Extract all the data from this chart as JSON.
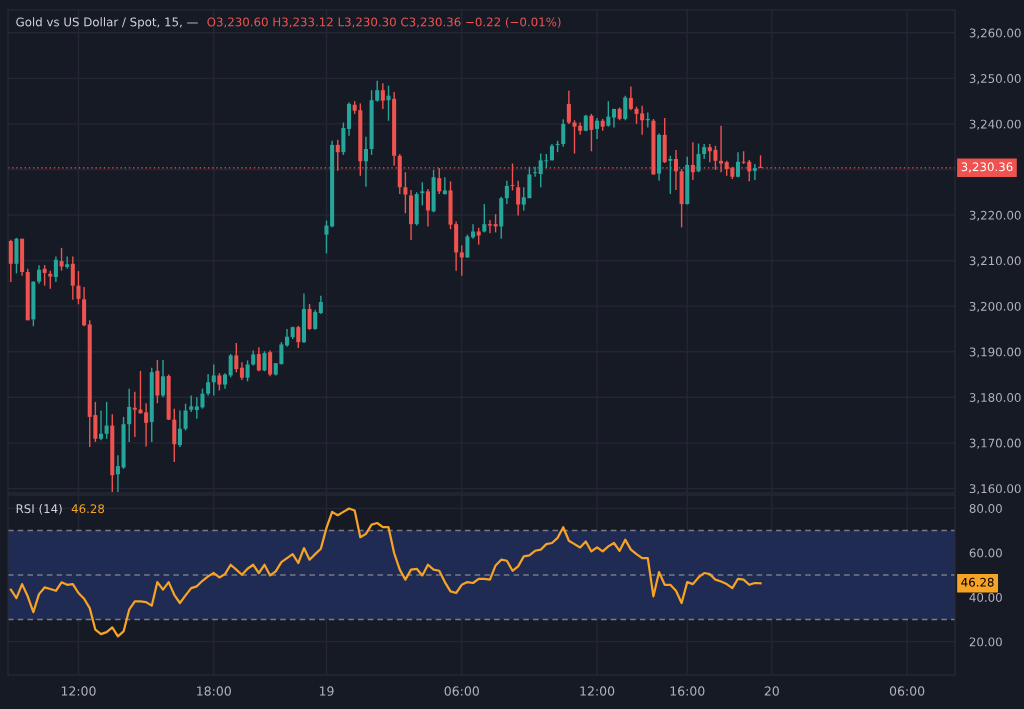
{
  "chart_data": [
    {
      "type": "candlestick",
      "title": "Gold vs US Dollar / Spot, 15, —",
      "subtitle": "O3,230.60 H3,233.12 L3,230.30 C3,230.36 −0.22 (−0.01%)",
      "colors": [
        "#ef5350",
        "#26a69a",
        "#ef5350",
        "#ef5350",
        "#26a69a",
        "#26a69a",
        "#ef5350",
        "#ef5350",
        "#26a69a",
        "#ef5350",
        "#26a69a",
        "#ef5350",
        "#ef5350",
        "#ef5350",
        "#ef5350",
        "#ef5350",
        "#26a69a",
        "#26a69a",
        "#ef5350",
        "#26a69a",
        "#26a69a",
        "#26a69a",
        "#ef5350",
        "#ef5350",
        "#ef5350",
        "#26a69a",
        "#ef5350",
        "#26a69a",
        "#ef5350",
        "#ef5350",
        "#26a69a",
        "#26a69a",
        "#26a69a",
        "#26a69a",
        "#26a69a",
        "#26a69a",
        "#26a69a",
        "#ef5350",
        "#26a69a",
        "#26a69a",
        "#ef5350",
        "#ef5350",
        "#26a69a",
        "#26a69a",
        "#ef5350",
        "#26a69a",
        "#ef5350",
        "#26a69a",
        "#26a69a",
        "#26a69a",
        "#26a69a",
        "#ef5350",
        "#26a69a",
        "#ef5350",
        "#26a69a",
        "#26a69a",
        "#26a69a",
        "#26a69a",
        "#ef5350",
        "#26a69a",
        "#26a69a",
        "#ef5350",
        "#ef5350",
        "#26a69a",
        "#26a69a",
        "#26a69a",
        "#ef5350",
        "#26a69a",
        "#ef5350",
        "#ef5350",
        "#ef5350",
        "#ef5350",
        "#26a69a",
        "#26a69a",
        "#ef5350",
        "#26a69a",
        "#ef5350",
        "#26a69a",
        "#ef5350",
        "#ef5350",
        "#ef5350",
        "#26a69a",
        "#26a69a",
        "#ef5350",
        "#26a69a",
        "#ef5350",
        "#ef5350",
        "#26a69a",
        "#26a69a",
        "#ef5350",
        "#ef5350",
        "#26a69a",
        "#26a69a",
        "#26a69a",
        "#26a69a",
        "#26a69a",
        "#26a69a",
        "#26a69a",
        "#26a69a",
        "#ef5350",
        "#ef5350",
        "#ef5350",
        "#26a69a",
        "#ef5350",
        "#26a69a",
        "#ef5350",
        "#26a69a",
        "#26a69a",
        "#ef5350",
        "#26a69a",
        "#ef5350",
        "#ef5350",
        "#ef5350",
        "#26a69a",
        "#ef5350",
        "#26a69a",
        "#ef5350",
        "#26a69a",
        "#ef5350",
        "#ef5350",
        "#26a69a",
        "#ef5350",
        "#26a69a",
        "#26a69a",
        "#ef5350",
        "#ef5350",
        "#ef5350",
        "#ef5350",
        "#ef5350",
        "#26a69a",
        "#ef5350",
        "#ef5350",
        "#26a69a",
        "#ef5350",
        null,
        null,
        null,
        null,
        null,
        null,
        null,
        null,
        null,
        null,
        null,
        null,
        null,
        null,
        null,
        null,
        null,
        null,
        null,
        null,
        null,
        null,
        null,
        null,
        null,
        null,
        null,
        null,
        null,
        null,
        null,
        null,
        null,
        null
      ],
      "categories": [
        null,
        null,
        null,
        null,
        null,
        null,
        null,
        null,
        null,
        null,
        null,
        null,
        null,
        null,
        null,
        null,
        null,
        null,
        null,
        null,
        null,
        null,
        null,
        null,
        null,
        null,
        null,
        null,
        null,
        null,
        null,
        null,
        null,
        null,
        null,
        null,
        null,
        null,
        null,
        null,
        null,
        null,
        null,
        null,
        null,
        null,
        null,
        null,
        null,
        null,
        null,
        null,
        null,
        null,
        null,
        null,
        null,
        null,
        null,
        null,
        null,
        null,
        null,
        null,
        null,
        null,
        null,
        null,
        null,
        null,
        null,
        null,
        null,
        null,
        null,
        null,
        null,
        null,
        null,
        null,
        null,
        null,
        null,
        null,
        null,
        null,
        null,
        null,
        null,
        null,
        null,
        null,
        null,
        null,
        null,
        null,
        null,
        null,
        null,
        null,
        null,
        null,
        null,
        null,
        null,
        null,
        null,
        null,
        null,
        null,
        null,
        null,
        null,
        null,
        null,
        null,
        null,
        null,
        null,
        null,
        null,
        null,
        null,
        null,
        null,
        null,
        null,
        null,
        null,
        null,
        null,
        null,
        null,
        null,
        null,
        null,
        null,
        null,
        null,
        null,
        null,
        null,
        null,
        null,
        null,
        null,
        null,
        null,
        null,
        null,
        null,
        null,
        null,
        null,
        null,
        null,
        null,
        null,
        null,
        null,
        null,
        null,
        null,
        null,
        null,
        null,
        null,
        null
      ],
      "ohlc": [
        [
          3214.3,
          3214.6,
          3205.3,
          3209.3
        ],
        [
          3209.3,
          3215.0,
          3207.2,
          3214.8
        ],
        [
          3214.8,
          3214.8,
          3206.7,
          3207.5
        ],
        [
          3207.5,
          3208.2,
          3196.9,
          3196.9
        ],
        [
          3197.1,
          3205.4,
          3195.6,
          3205.4
        ],
        [
          3205.4,
          3209.0,
          3204.9,
          3208.0
        ],
        [
          3208.2,
          3209.0,
          3204.5,
          3207.3
        ],
        [
          3207.1,
          3207.8,
          3203.8,
          3206.5
        ],
        [
          3206.4,
          3210.9,
          3205.3,
          3210.2
        ],
        [
          3209.9,
          3212.8,
          3207.8,
          3208.7
        ],
        [
          3208.6,
          3210.9,
          3208.2,
          3209.2
        ],
        [
          3209.3,
          3210.9,
          3201.4,
          3204.5
        ],
        [
          3204.5,
          3207.7,
          3200.4,
          3201.6
        ],
        [
          3201.5,
          3204.2,
          3195.6,
          3195.8
        ],
        [
          3196.0,
          3196.9,
          3169.1,
          3175.7
        ],
        [
          3176.1,
          3179.0,
          3170.2,
          3170.9
        ],
        [
          3170.9,
          3177.1,
          3170.6,
          3172.0
        ],
        [
          3172.0,
          3179.0,
          3170.9,
          3173.8
        ],
        [
          3173.8,
          3176.3,
          3159.2,
          3162.9
        ],
        [
          3163.1,
          3167.3,
          3159.2,
          3164.9
        ],
        [
          3164.6,
          3175.7,
          3164.3,
          3174.1
        ],
        [
          3174.1,
          3181.9,
          3170.2,
          3177.9
        ],
        [
          3177.7,
          3181.2,
          3171.3,
          3177.3
        ],
        [
          3177.3,
          3185.8,
          3176.4,
          3176.5
        ],
        [
          3176.7,
          3178.7,
          3169.2,
          3174.4
        ],
        [
          3174.6,
          3186.5,
          3170.2,
          3185.5
        ],
        [
          3185.8,
          3188.2,
          3178.7,
          3180.4
        ],
        [
          3180.4,
          3188.2,
          3180.0,
          3184.6
        ],
        [
          3184.7,
          3185.0,
          3175.0,
          3175.1
        ],
        [
          3175.1,
          3177.5,
          3165.8,
          3169.7
        ],
        [
          3169.5,
          3177.1,
          3169.1,
          3173.1
        ],
        [
          3173.1,
          3178.6,
          3172.7,
          3177.1
        ],
        [
          3177.3,
          3180.4,
          3176.8,
          3178.0
        ],
        [
          3177.2,
          3180.0,
          3175.3,
          3178.0
        ],
        [
          3177.8,
          3181.9,
          3177.5,
          3180.8
        ],
        [
          3180.8,
          3185.1,
          3180.4,
          3183.3
        ],
        [
          3183.3,
          3187.2,
          3180.4,
          3184.8
        ],
        [
          3184.8,
          3185.3,
          3181.5,
          3182.8
        ],
        [
          3182.8,
          3185.3,
          3181.9,
          3185.0
        ],
        [
          3184.8,
          3189.5,
          3184.4,
          3189.2
        ],
        [
          3189.2,
          3191.9,
          3185.5,
          3186.2
        ],
        [
          3186.5,
          3187.7,
          3183.8,
          3184.3
        ],
        [
          3184.3,
          3188.1,
          3183.5,
          3187.2
        ],
        [
          3187.2,
          3190.3,
          3187.0,
          3189.4
        ],
        [
          3189.5,
          3191.0,
          3185.7,
          3185.9
        ],
        [
          3185.9,
          3190.1,
          3185.7,
          3189.7
        ],
        [
          3189.9,
          3190.3,
          3184.6,
          3185.0
        ],
        [
          3185.0,
          3187.5,
          3184.8,
          3187.5
        ],
        [
          3187.3,
          3192.1,
          3187.2,
          3191.6
        ],
        [
          3191.4,
          3195.0,
          3191.1,
          3193.3
        ],
        [
          3193.2,
          3195.5,
          3192.8,
          3195.4
        ],
        [
          3195.4,
          3195.7,
          3190.8,
          3192.1
        ],
        [
          3192.1,
          3202.8,
          3191.9,
          3199.4
        ],
        [
          3199.4,
          3200.5,
          3194.8,
          3195.0
        ],
        [
          3195.0,
          3199.2,
          3194.8,
          3198.7
        ],
        [
          3198.5,
          3202.3,
          3198.3,
          3200.9
        ],
        [
          3215.7,
          3218.8,
          3211.6,
          3217.7
        ],
        [
          3217.5,
          3236.3,
          3217.3,
          3235.4
        ],
        [
          3235.4,
          3236.5,
          3229.7,
          3233.8
        ],
        [
          3233.8,
          3240.3,
          3233.2,
          3239.1
        ],
        [
          3238.9,
          3244.7,
          3237.4,
          3244.4
        ],
        [
          3244.2,
          3245.0,
          3242.2,
          3242.9
        ],
        [
          3243.0,
          3244.5,
          3228.6,
          3231.8
        ],
        [
          3231.8,
          3237.2,
          3226.2,
          3234.5
        ],
        [
          3234.5,
          3247.4,
          3233.2,
          3245.2
        ],
        [
          3245.1,
          3249.5,
          3244.9,
          3247.4
        ],
        [
          3247.4,
          3248.9,
          3243.3,
          3245.1
        ],
        [
          3245.2,
          3248.4,
          3240.7,
          3246.2
        ],
        [
          3245.5,
          3247.0,
          3230.8,
          3233.0
        ],
        [
          3233.0,
          3233.4,
          3224.6,
          3226.1
        ],
        [
          3226.1,
          3229.4,
          3220.4,
          3224.5
        ],
        [
          3224.3,
          3225.5,
          3214.5,
          3218.0
        ],
        [
          3218.0,
          3225.0,
          3217.7,
          3224.6
        ],
        [
          3224.8,
          3227.2,
          3222.1,
          3225.2
        ],
        [
          3225.2,
          3225.7,
          3217.5,
          3221.0
        ],
        [
          3220.8,
          3229.9,
          3220.6,
          3228.3
        ],
        [
          3228.1,
          3230.3,
          3224.6,
          3225.2
        ],
        [
          3224.6,
          3228.3,
          3224.5,
          3225.4
        ],
        [
          3225.4,
          3227.4,
          3216.9,
          3217.9
        ],
        [
          3218.0,
          3218.6,
          3207.8,
          3211.8
        ],
        [
          3211.8,
          3213.3,
          3206.7,
          3210.7
        ],
        [
          3210.7,
          3215.7,
          3210.6,
          3215.3
        ],
        [
          3215.1,
          3218.0,
          3214.8,
          3216.4
        ],
        [
          3216.4,
          3217.2,
          3213.5,
          3215.5
        ],
        [
          3216.4,
          3222.4,
          3216.2,
          3218.0
        ],
        [
          3218.0,
          3218.9,
          3216.0,
          3217.7
        ],
        [
          3218.0,
          3220.2,
          3216.2,
          3217.5
        ],
        [
          3217.5,
          3224.0,
          3214.8,
          3223.7
        ],
        [
          3223.7,
          3227.5,
          3222.4,
          3226.4
        ],
        [
          3226.6,
          3231.3,
          3225.4,
          3226.4
        ],
        [
          3226.1,
          3227.5,
          3219.9,
          3222.3
        ],
        [
          3222.3,
          3226.1,
          3221.0,
          3223.9
        ],
        [
          3223.7,
          3230.6,
          3223.7,
          3228.9
        ],
        [
          3229.2,
          3230.6,
          3228.4,
          3229.4
        ],
        [
          3229.0,
          3233.5,
          3226.1,
          3232.0
        ],
        [
          3231.8,
          3233.4,
          3230.3,
          3232.0
        ],
        [
          3232.0,
          3235.6,
          3232.0,
          3235.2
        ],
        [
          3235.4,
          3236.3,
          3233.8,
          3235.6
        ],
        [
          3235.6,
          3241.0,
          3235.0,
          3240.0
        ],
        [
          3244.4,
          3247.3,
          3240.0,
          3240.3
        ],
        [
          3240.3,
          3240.8,
          3233.5,
          3239.4
        ],
        [
          3239.6,
          3240.3,
          3237.6,
          3238.5
        ],
        [
          3238.5,
          3242.0,
          3238.4,
          3241.8
        ],
        [
          3241.8,
          3242.2,
          3234.0,
          3238.7
        ],
        [
          3238.9,
          3241.3,
          3236.7,
          3240.7
        ],
        [
          3240.7,
          3241.1,
          3238.5,
          3239.4
        ],
        [
          3239.6,
          3245.0,
          3239.4,
          3241.6
        ],
        [
          3241.4,
          3243.3,
          3239.2,
          3243.3
        ],
        [
          3243.3,
          3243.6,
          3240.8,
          3241.1
        ],
        [
          3241.1,
          3246.2,
          3240.8,
          3245.8
        ],
        [
          3245.7,
          3248.2,
          3243.0,
          3243.3
        ],
        [
          3243.3,
          3243.8,
          3240.0,
          3242.2
        ],
        [
          3242.3,
          3244.0,
          3237.6,
          3240.8
        ],
        [
          3240.8,
          3242.5,
          3239.2,
          3241.1
        ],
        [
          3240.7,
          3241.1,
          3228.9,
          3228.9
        ],
        [
          3229.1,
          3237.9,
          3227.5,
          3237.6
        ],
        [
          3237.6,
          3241.3,
          3231.4,
          3231.6
        ],
        [
          3231.9,
          3233.0,
          3224.6,
          3232.3
        ],
        [
          3232.3,
          3234.3,
          3225.5,
          3229.6
        ],
        [
          3229.6,
          3230.1,
          3217.3,
          3222.4
        ],
        [
          3222.4,
          3232.8,
          3222.3,
          3231.0
        ],
        [
          3231.0,
          3236.0,
          3227.7,
          3229.4
        ],
        [
          3229.6,
          3235.7,
          3229.4,
          3233.4
        ],
        [
          3233.4,
          3235.6,
          3232.3,
          3234.9
        ],
        [
          3234.9,
          3235.6,
          3231.6,
          3234.0
        ],
        [
          3234.3,
          3235.2,
          3229.9,
          3231.9
        ],
        [
          3231.9,
          3239.6,
          3229.4,
          3231.3
        ],
        [
          3231.6,
          3231.9,
          3228.6,
          3230.1
        ],
        [
          3230.3,
          3230.6,
          3227.9,
          3228.4
        ],
        [
          3228.4,
          3233.8,
          3228.3,
          3231.7
        ],
        [
          3231.7,
          3234.0,
          3231.2,
          3231.5
        ],
        [
          3231.7,
          3232.1,
          3227.4,
          3229.6
        ],
        [
          3229.7,
          3231.2,
          3227.7,
          3230.3
        ],
        [
          3230.6,
          3233.12,
          3230.3,
          3230.36
        ],
        null,
        null,
        null,
        null,
        null,
        null,
        null,
        null,
        null,
        null,
        null,
        null,
        null,
        null,
        null,
        null,
        null,
        null,
        null,
        null,
        null,
        null,
        null,
        null,
        null,
        null,
        null,
        null,
        null,
        null,
        null,
        null,
        null,
        null
      ],
      "ylim": [
        3159,
        3265
      ],
      "yticks": [
        {
          "value": 3160,
          "label": "3,160.00"
        },
        {
          "value": 3170,
          "label": "3,170.00"
        },
        {
          "value": 3180,
          "label": "3,180.00"
        },
        {
          "value": 3190,
          "label": "3,190.00"
        },
        {
          "value": 3200,
          "label": "3,200.00"
        },
        {
          "value": 3210,
          "label": "3,210.00"
        },
        {
          "value": 3220,
          "label": "3,220.00"
        },
        {
          "value": 3230,
          "label": null
        },
        {
          "value": 3240,
          "label": "3,240.00"
        },
        {
          "value": 3250,
          "label": "3,250.00"
        },
        {
          "value": 3260,
          "label": "3,260.00"
        }
      ],
      "ref_lines": [
        {
          "axis": "y",
          "value": 3230.36,
          "label": "3,230.36",
          "color": "#ef5350",
          "line_style": "dotted"
        }
      ],
      "grid": true,
      "tick_labels": "y"
    },
    {
      "type": "line",
      "title": "RSI (14)",
      "subtitle": "46.28",
      "categories": [
        null,
        null,
        null,
        null,
        null,
        null,
        null,
        null,
        null,
        null,
        null,
        null,
        "12:00",
        null,
        null,
        null,
        null,
        null,
        null,
        null,
        null,
        null,
        null,
        null,
        null,
        null,
        null,
        null,
        null,
        null,
        null,
        null,
        null,
        null,
        null,
        null,
        "18:00",
        null,
        null,
        null,
        null,
        null,
        null,
        null,
        null,
        null,
        null,
        null,
        null,
        null,
        null,
        null,
        null,
        null,
        null,
        null,
        "19",
        null,
        null,
        null,
        null,
        null,
        null,
        null,
        null,
        null,
        null,
        null,
        null,
        null,
        null,
        null,
        null,
        null,
        null,
        null,
        null,
        null,
        null,
        null,
        "06:00",
        null,
        null,
        null,
        null,
        null,
        null,
        null,
        null,
        null,
        null,
        null,
        null,
        null,
        null,
        null,
        null,
        null,
        null,
        null,
        null,
        null,
        null,
        null,
        "12:00",
        null,
        null,
        null,
        null,
        null,
        null,
        null,
        null,
        null,
        null,
        null,
        null,
        null,
        null,
        null,
        "16:00",
        null,
        null,
        null,
        null,
        null,
        null,
        null,
        null,
        null,
        null,
        null,
        null,
        null,
        null,
        "20",
        null,
        null,
        null,
        null,
        null,
        null,
        null,
        null,
        null,
        null,
        null,
        null,
        null,
        null,
        null,
        null,
        null,
        null,
        null,
        null,
        null,
        null,
        null,
        "06:00",
        null,
        null,
        null,
        null,
        null,
        null,
        null,
        null
      ],
      "series": [
        {
          "color": "#f7a325",
          "values": [
            43.4,
            39.6,
            45.9,
            40.4,
            33.3,
            41.4,
            44.4,
            43.7,
            42.9,
            46.7,
            45.6,
            45.9,
            41.9,
            39.3,
            35.1,
            25.4,
            23.4,
            24.3,
            26.4,
            22.4,
            24.6,
            34.4,
            38.1,
            38.1,
            37.8,
            36.2,
            46.8,
            43.4,
            46.8,
            41.1,
            37.4,
            40.8,
            44.1,
            44.9,
            47.4,
            49.4,
            50.9,
            48.9,
            50.4,
            54.6,
            52.4,
            50.1,
            52.8,
            54.6,
            50.9,
            54.6,
            49.8,
            51.6,
            55.8,
            57.6,
            59.4,
            55.4,
            62.1,
            56.9,
            59.4,
            61.8,
            71.2,
            78.4,
            76.9,
            78.4,
            79.9,
            79.0,
            67.0,
            68.5,
            72.7,
            73.4,
            71.5,
            71.5,
            59.9,
            52.4,
            47.9,
            52.4,
            52.8,
            49.8,
            54.6,
            52.4,
            51.9,
            46.8,
            42.6,
            41.9,
            45.6,
            46.8,
            46.4,
            48.3,
            48.3,
            47.9,
            54.3,
            56.9,
            56.4,
            51.9,
            53.9,
            58.4,
            58.8,
            60.9,
            61.4,
            63.9,
            64.4,
            66.7,
            71.5,
            65.4,
            63.9,
            62.4,
            65.1,
            60.6,
            62.4,
            60.6,
            62.9,
            64.4,
            60.9,
            65.9,
            61.4,
            59.4,
            57.6,
            57.6,
            40.4,
            51.3,
            45.6,
            45.6,
            42.9,
            37.4,
            46.8,
            45.9,
            48.9,
            50.9,
            50.4,
            47.9,
            47.1,
            45.9,
            44.1,
            48.3,
            47.9,
            45.6,
            46.4,
            46.28,
            null,
            null,
            null,
            null,
            null,
            null,
            null,
            null,
            null,
            null,
            null,
            null,
            null,
            null,
            null,
            null,
            null,
            null,
            null,
            null,
            null,
            null,
            null,
            null,
            null,
            null,
            null,
            null,
            null,
            null,
            null,
            null,
            null,
            null
          ]
        }
      ],
      "ylim": [
        5,
        86
      ],
      "yticks": [
        {
          "value": 20,
          "label": "20.00"
        },
        {
          "value": 40,
          "label": "40.00"
        },
        {
          "value": 60,
          "label": "60.00"
        },
        {
          "value": 80,
          "label": "80.00"
        }
      ],
      "ref_lines": [
        {
          "axis": "y",
          "value": 70,
          "color": "#787b86",
          "line_style": "dashed"
        },
        {
          "axis": "y",
          "value": 50,
          "color": "#787b86",
          "line_style": "dashed"
        },
        {
          "axis": "y",
          "value": 30,
          "color": "#787b86",
          "line_style": "dashed"
        }
      ],
      "bands": [
        {
          "axis": "y",
          "from": 30,
          "to": 70,
          "color": "#1f2b52"
        }
      ],
      "annotations": [
        {
          "text": "46.28",
          "y": 46.28
        }
      ],
      "grid": true
    }
  ]
}
